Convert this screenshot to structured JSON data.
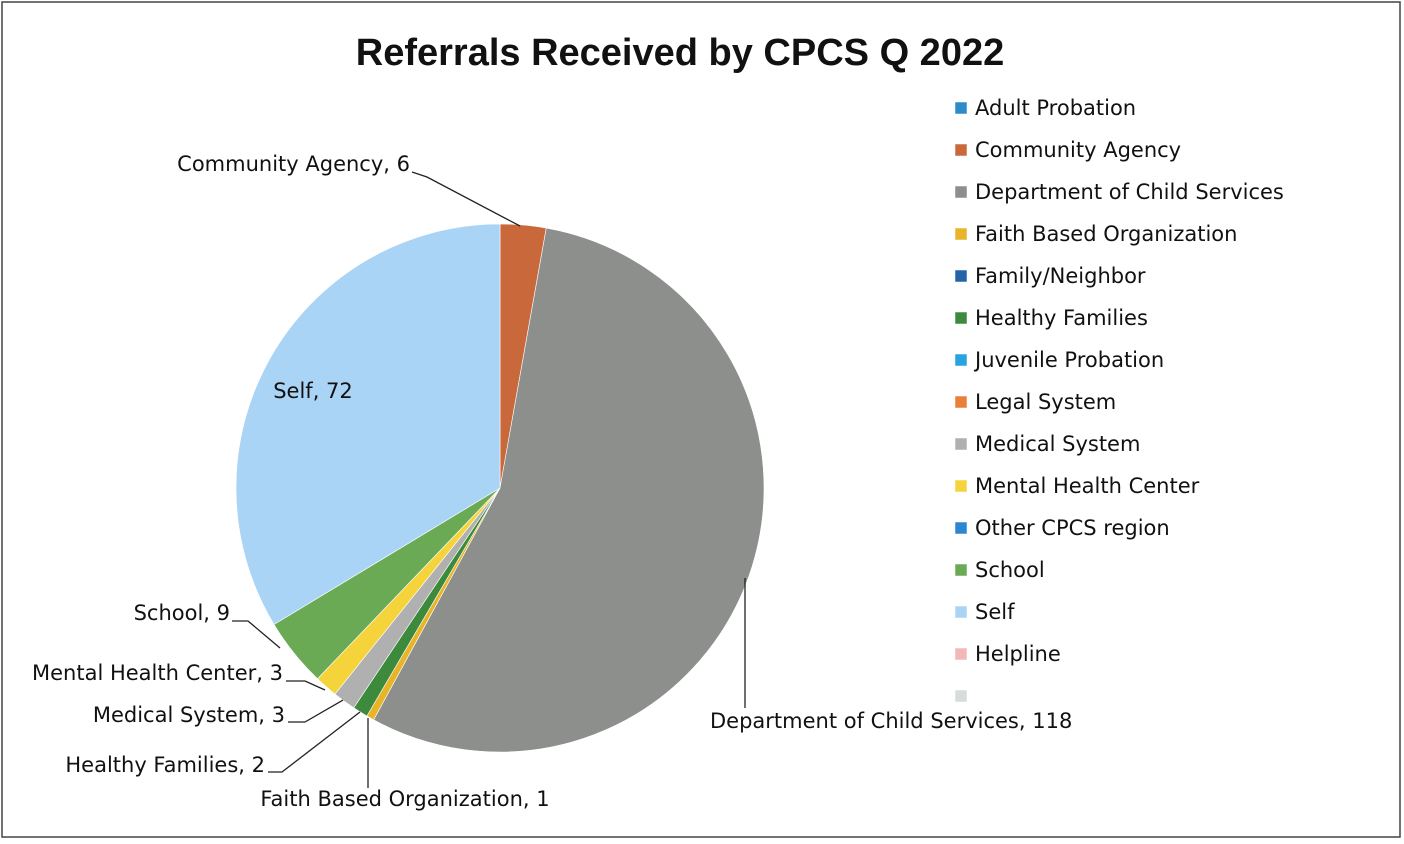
{
  "chart_data": {
    "type": "pie",
    "title": "Referrals Received by CPCS Q 2022",
    "categories": [
      "Adult Probation",
      "Community Agency",
      "Department of Child Services",
      "Faith Based Organization",
      "Family/Neighbor",
      "Healthy Families",
      "Juvenile Probation",
      "Legal System",
      "Medical System",
      "Mental Health Center",
      "Other CPCS region",
      "School",
      "Self",
      "Helpline",
      null
    ],
    "values": [
      0,
      6,
      118,
      1,
      0,
      2,
      0,
      0,
      3,
      3,
      0,
      9,
      72,
      0,
      0
    ],
    "value_labels": [
      null,
      "Community Agency, 6",
      "Department of Child Services, 118",
      "Faith Based Organization, 1",
      null,
      "Healthy Families, 2",
      null,
      null,
      "Medical System, 3",
      "Mental Health Center, 3",
      null,
      "School, 9",
      "Self, 72",
      null,
      null
    ],
    "colors": [
      "#2e8bc9",
      "#c9683a",
      "#8c8f8c",
      "#e8b428",
      "#2563a8",
      "#3d8a3d",
      "#29a3e0",
      "#e8803a",
      "#b0b0b0",
      "#f5d33a",
      "#2f86d0",
      "#6aaa55",
      "#aad4f5",
      "#f2b8b8",
      "#d8dcdc"
    ],
    "legend": "right"
  }
}
